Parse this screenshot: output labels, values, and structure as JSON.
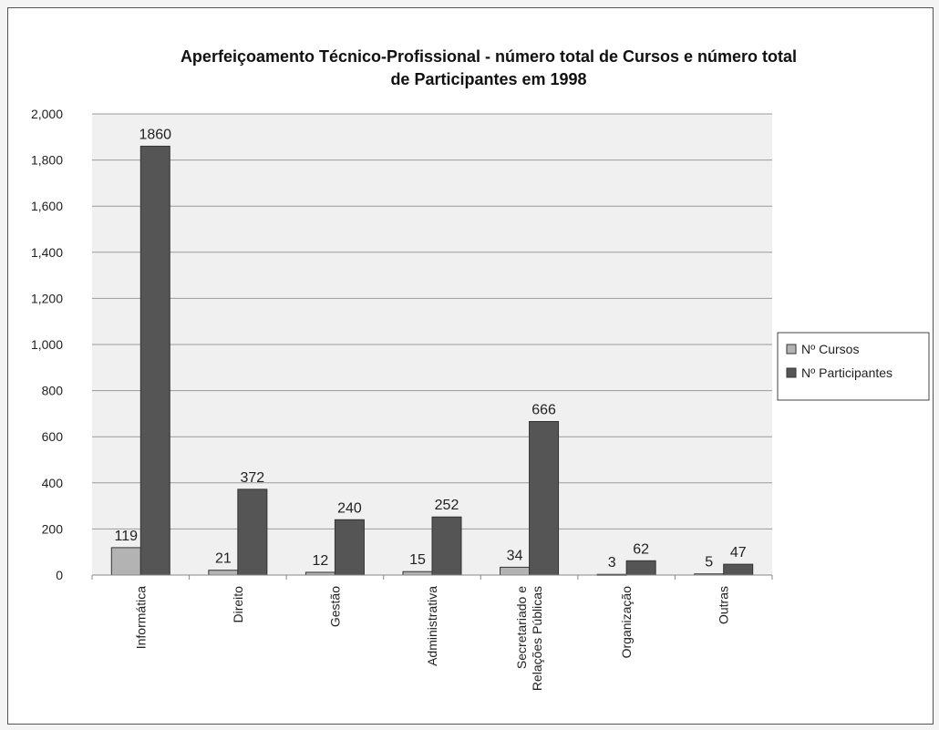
{
  "chart_data": {
    "type": "bar",
    "title": "Aperfeiçoamento Técnico-Profissional - número total de Cursos e número total de Participantes em 1998",
    "title_lines": [
      "Aperfeiçoamento Técnico-Profissional - número total de Cursos e número total",
      "de Participantes em 1998"
    ],
    "categories": [
      "Informática",
      "Direito",
      "Gestão",
      "Administrativa",
      "Secretariado e Relações Públicas",
      "Organização",
      "Outras"
    ],
    "category_lines": [
      [
        "Informática"
      ],
      [
        "Direito"
      ],
      [
        "Gestão"
      ],
      [
        "Administrativa"
      ],
      [
        "Secretariado e",
        "Relações Públicas"
      ],
      [
        "Organização"
      ],
      [
        "Outras"
      ]
    ],
    "series": [
      {
        "name": "Nº Cursos",
        "values": [
          119,
          21,
          12,
          15,
          34,
          3,
          5
        ],
        "color": "#b3b3b3"
      },
      {
        "name": "Nº Participantes",
        "values": [
          1860,
          372,
          240,
          252,
          666,
          62,
          47
        ],
        "color": "#555555"
      }
    ],
    "ylim": [
      0,
      2000
    ],
    "yticks": [
      0,
      200,
      400,
      600,
      800,
      1000,
      1200,
      1400,
      1600,
      1800,
      2000
    ],
    "ytick_labels": [
      "0",
      "200",
      "400",
      "600",
      "800",
      "1,000",
      "1,200",
      "1,400",
      "1,600",
      "1,800",
      "2,000"
    ],
    "grid": true,
    "legend_position": "right"
  }
}
